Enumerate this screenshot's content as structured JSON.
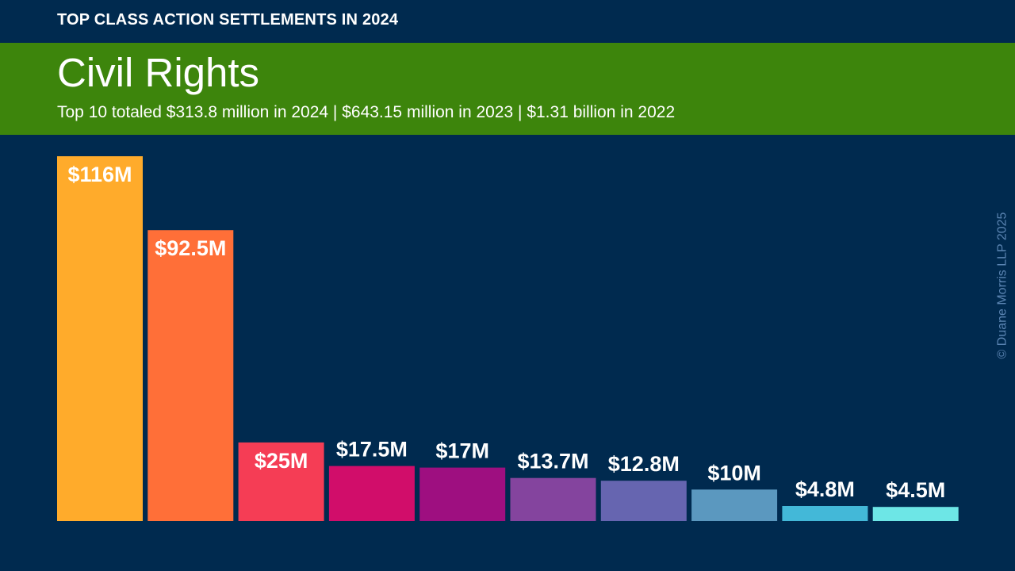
{
  "header": {
    "kicker": "TOP CLASS ACTION SETTLEMENTS IN 2024",
    "title": "Civil Rights",
    "subtitle": "Top 10 totaled $313.8 million in 2024 | $643.15 million in 2023 | $1.31 billion in 2022"
  },
  "copyright": "© Duane Morris LLP 2025",
  "colors": {
    "background": "#002a4f",
    "band": "#3d850c"
  },
  "chart_data": {
    "type": "bar",
    "values": [
      116,
      92.5,
      25,
      17.5,
      17,
      13.7,
      12.8,
      10,
      4.8,
      4.5
    ],
    "labels": [
      "$116M",
      "$92.5M",
      "$25M",
      "$17.5M",
      "$17M",
      "$13.7M",
      "$12.8M",
      "$10M",
      "$4.8M",
      "$4.5M"
    ],
    "colors": [
      "#ffab2b",
      "#ff6f38",
      "#f53d55",
      "#d10d6a",
      "#9e0f80",
      "#84449e",
      "#6665b0",
      "#5b98bf",
      "#43b8d8",
      "#6de6e6"
    ],
    "ylim": [
      0,
      116
    ],
    "grid": false,
    "legend": "none"
  }
}
